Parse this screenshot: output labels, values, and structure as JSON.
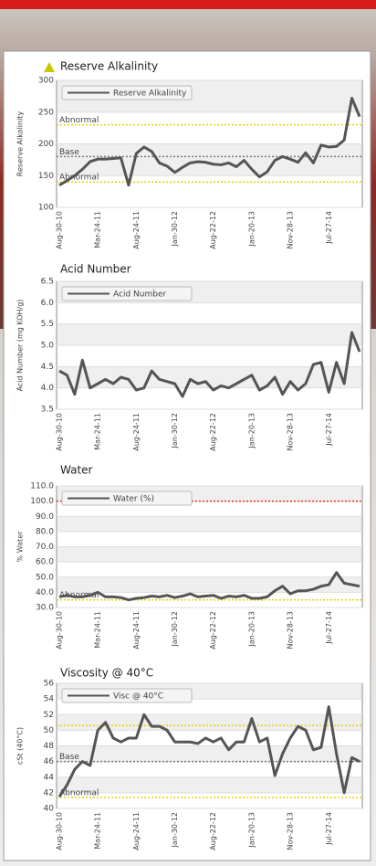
{
  "chart_data": [
    {
      "type": "line",
      "title": "Reserve Alkalinity",
      "y_label": "Reserve Alkalinity",
      "categories": [
        "Aug-30-10",
        null,
        null,
        null,
        null,
        "Mar-24-11",
        null,
        null,
        null,
        null,
        "Aug-24-11",
        null,
        null,
        null,
        null,
        "Jan-30-12",
        null,
        null,
        null,
        null,
        "Aug-22-12",
        null,
        null,
        null,
        null,
        "Jan-20-13",
        null,
        null,
        null,
        null,
        "Nov-28-13",
        null,
        null,
        null,
        null,
        "Jul-27-14",
        null,
        null,
        null,
        null
      ],
      "series": [
        {
          "name": "Reserve Alkalinity",
          "color": "#555555",
          "values": [
            135,
            142,
            150,
            160,
            172,
            176,
            176,
            177,
            178,
            135,
            185,
            195,
            188,
            170,
            165,
            155,
            163,
            170,
            172,
            171,
            168,
            167,
            170,
            164,
            174,
            160,
            148,
            156,
            174,
            180,
            176,
            171,
            186,
            170,
            198,
            195,
            196,
            206,
            272,
            243
          ]
        }
      ],
      "reference_lines": [
        {
          "value": 230,
          "label": "Abnormal",
          "color": "#e8d000"
        },
        {
          "value": 180,
          "label": "Base",
          "color": "#777777"
        },
        {
          "value": 140,
          "label": "Abnormal",
          "color": "#e8d000"
        }
      ],
      "ylim": [
        100,
        300
      ],
      "yticks": [
        100,
        150,
        200,
        250,
        300
      ],
      "grid": true
    },
    {
      "type": "line",
      "title": "Acid Number",
      "y_label": "Acid Number (mg KOH/g)",
      "categories": [
        "Aug-30-10",
        null,
        null,
        null,
        null,
        "Mar-24-11",
        null,
        null,
        null,
        null,
        "Aug-24-11",
        null,
        null,
        null,
        null,
        "Jan-30-12",
        null,
        null,
        null,
        null,
        "Aug-22-12",
        null,
        null,
        null,
        null,
        "Jan-20-13",
        null,
        null,
        null,
        null,
        "Nov-28-13",
        null,
        null,
        null,
        null,
        "Jul-27-14",
        null,
        null,
        null,
        null
      ],
      "series": [
        {
          "name": "Acid Number",
          "color": "#555555",
          "values": [
            4.4,
            4.3,
            3.85,
            4.65,
            4.0,
            4.1,
            4.2,
            4.1,
            4.25,
            4.2,
            3.95,
            4.0,
            4.4,
            4.2,
            4.15,
            4.1,
            3.8,
            4.2,
            4.1,
            4.15,
            3.95,
            4.05,
            4.0,
            4.1,
            4.2,
            4.3,
            3.95,
            4.05,
            4.25,
            3.85,
            4.15,
            3.95,
            4.1,
            4.55,
            4.6,
            3.9,
            4.6,
            4.1,
            5.3,
            4.85
          ]
        }
      ],
      "reference_lines": [],
      "ylim": [
        3.5,
        6.5
      ],
      "yticks": [
        3.5,
        {
          "value": 4,
          "label": "4.0"
        },
        4.5,
        {
          "value": 5,
          "label": "5.0"
        },
        5.5,
        {
          "value": 6,
          "label": "6.0"
        },
        6.5
      ],
      "grid": true
    },
    {
      "type": "line",
      "title": "Water",
      "y_label": "% Water",
      "categories": [
        "Aug-30-10",
        null,
        null,
        null,
        null,
        "Mar-24-11",
        null,
        null,
        null,
        null,
        "Aug-24-11",
        null,
        null,
        null,
        null,
        "Jan-30-12",
        null,
        null,
        null,
        null,
        "Aug-22-12",
        null,
        null,
        null,
        null,
        "Jan-20-13",
        null,
        null,
        null,
        null,
        "Nov-28-13",
        null,
        null,
        null,
        null,
        "Jul-27-14",
        null,
        null,
        null,
        null
      ],
      "series": [
        {
          "name": "Water (%)",
          "color": "#555555",
          "values": [
            37,
            38,
            37,
            37,
            38,
            40,
            37,
            37,
            36.5,
            35,
            36,
            36.5,
            37.5,
            37,
            38,
            36.5,
            37.5,
            39,
            37,
            37.5,
            38,
            36,
            37.5,
            37,
            38,
            36,
            36,
            37,
            41,
            44,
            39,
            41,
            41,
            42,
            44,
            45,
            53,
            46,
            45,
            44
          ]
        }
      ],
      "reference_lines": [
        {
          "value": 100,
          "color": "#e83030"
        },
        {
          "value": 35,
          "label": "Abnormal",
          "color": "#e8d000"
        }
      ],
      "ylim": [
        30,
        110
      ],
      "yticks": [
        {
          "value": 30,
          "label": "30.0"
        },
        {
          "value": 40,
          "label": "40.0"
        },
        {
          "value": 50,
          "label": "50.0"
        },
        {
          "value": 60,
          "label": "60.0"
        },
        {
          "value": 70,
          "label": "70.0"
        },
        {
          "value": 80,
          "label": "80.0"
        },
        {
          "value": 90,
          "label": "90.0"
        },
        {
          "value": 100,
          "label": "100.0"
        },
        {
          "value": 110,
          "label": "110.0"
        }
      ],
      "grid": true
    },
    {
      "type": "line",
      "title": "Viscosity @ 40°C",
      "y_label": "cSt (40°C)",
      "categories": [
        "Aug-30-10",
        null,
        null,
        null,
        null,
        "Mar-24-11",
        null,
        null,
        null,
        null,
        "Aug-24-11",
        null,
        null,
        null,
        null,
        "Jan-30-12",
        null,
        null,
        null,
        null,
        "Aug-22-12",
        null,
        null,
        null,
        null,
        "Jan-20-13",
        null,
        null,
        null,
        null,
        "Nov-28-13",
        null,
        null,
        null,
        null,
        "Jul-27-14",
        null,
        null,
        null,
        null
      ],
      "series": [
        {
          "name": "Visc @ 40°C",
          "color": "#555555",
          "values": [
            41.5,
            43,
            45,
            46,
            45.5,
            50,
            51,
            49,
            48.5,
            49,
            49,
            52,
            50.5,
            50.5,
            50,
            48.5,
            48.5,
            48.5,
            48.3,
            49,
            48.5,
            49,
            47.5,
            48.5,
            48.5,
            51.5,
            48.5,
            49,
            44.2,
            47,
            49,
            50.5,
            50,
            47.5,
            47.8,
            53,
            47,
            42,
            46.5,
            46
          ]
        }
      ],
      "reference_lines": [
        {
          "value": 50.6,
          "color": "#e8d000"
        },
        {
          "value": 46,
          "label": "Base",
          "color": "#777777"
        },
        {
          "value": 41.4,
          "label": "Abnormal",
          "color": "#e8d000"
        }
      ],
      "ylim": [
        40,
        56
      ],
      "yticks": [
        40,
        42,
        44,
        46,
        48,
        50,
        52,
        54,
        56
      ],
      "grid": true
    }
  ]
}
